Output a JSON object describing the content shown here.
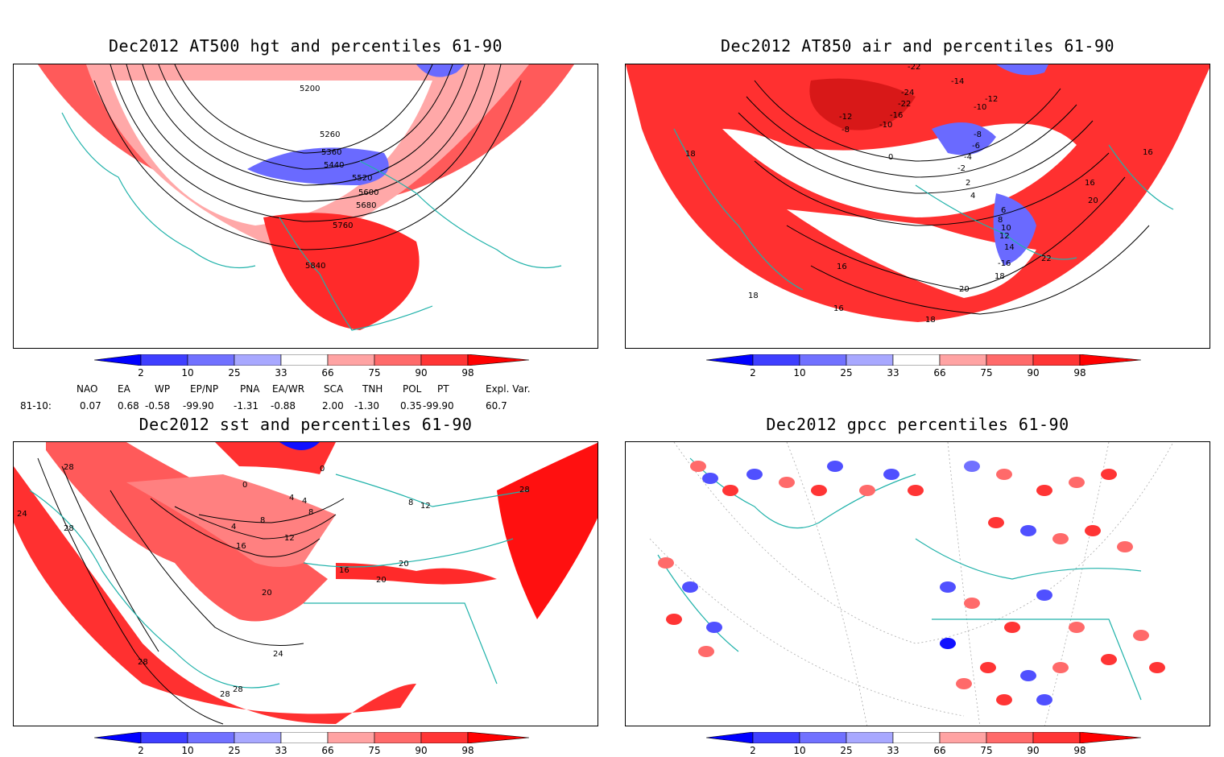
{
  "panels": [
    {
      "title": "Dec2012 AT500 hgt and percentiles 61-90",
      "contour_labels": [
        "5200",
        "5260",
        "5360",
        "5440",
        "5520",
        "5600",
        "5680",
        "5760",
        "5840"
      ]
    },
    {
      "title": "Dec2012 AT850 air and percentiles 61-90",
      "contour_labels": [
        "-22",
        "-14",
        "-12",
        "-12",
        "-8",
        "-10",
        "-16",
        "-24",
        "-22",
        "-10",
        "-8",
        "-6",
        "-4",
        "-2",
        "0",
        "2",
        "4",
        "6",
        "8",
        "10",
        "12",
        "14",
        "16",
        "16",
        "16",
        "18",
        "18",
        "18",
        "18",
        "20",
        "20",
        "22",
        "-16",
        "16"
      ]
    },
    {
      "title": "Dec2012 sst and percentiles 61-90",
      "contour_labels": [
        "28",
        "28",
        "24",
        "0",
        "0",
        "4",
        "4",
        "4",
        "8",
        "8",
        "12",
        "12",
        "8",
        "16",
        "16",
        "20",
        "20",
        "20",
        "24",
        "28",
        "28",
        "28",
        "28"
      ]
    },
    {
      "title": "Dec2012 gpcc percentiles 61-90",
      "contour_labels": []
    }
  ],
  "colorbar": {
    "labels": [
      "2",
      "10",
      "25",
      "33",
      "66",
      "75",
      "90",
      "98"
    ],
    "colors": [
      "#0000ff",
      "#3f3fff",
      "#7171ff",
      "#a8a8ff",
      "#ffffff",
      "#ffa3a3",
      "#ff6a6a",
      "#ff3535",
      "#ff0000"
    ]
  },
  "indices": {
    "headers": [
      "NAO",
      "EA",
      "WP",
      "EP/NP",
      "PNA",
      "EA/WR",
      "SCA",
      "TNH",
      "POL",
      "PT",
      "Expl. Var."
    ],
    "row_label": "81-10:",
    "values": [
      "0.07",
      "0.68",
      "-0.58",
      "-99.90",
      "-1.31",
      "-0.88",
      "2.00",
      "-1.30",
      "0.35",
      "-99.90",
      "60.7"
    ]
  },
  "map_colors": {
    "coast": "#20b2aa",
    "contour": "#000000",
    "anomaly_warm": "#ff3030",
    "anomaly_cold": "#5050ff"
  }
}
